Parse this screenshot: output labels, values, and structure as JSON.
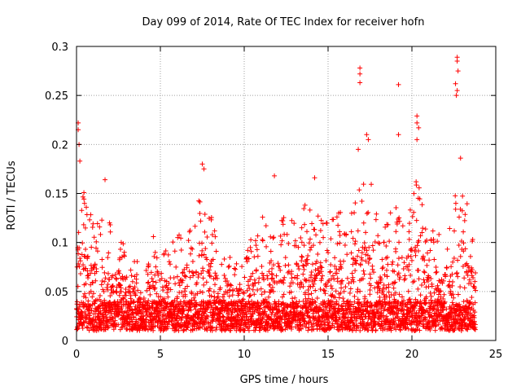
{
  "chart_data": {
    "type": "scatter",
    "title": "Day 099 of 2014, Rate Of TEC Index for receiver hofn",
    "xlabel": "GPS time / hours",
    "ylabel": "ROTI / TECUs",
    "xlim": [
      0,
      25
    ],
    "ylim": [
      0,
      0.3
    ],
    "xticks": [
      0,
      5,
      10,
      15,
      20,
      25
    ],
    "xtick_labels": [
      "0",
      "5",
      "10",
      "15",
      "20",
      "25"
    ],
    "yticks": [
      0,
      0.05,
      0.1,
      0.15,
      0.2,
      0.25,
      0.3
    ],
    "ytick_labels": [
      "0",
      "0.05",
      "0.1",
      "0.15",
      "0.2",
      "0.25",
      "0.3"
    ],
    "grid": true,
    "marker": "+",
    "marker_color": "#ff0000",
    "x_data_range": [
      0,
      23.8
    ],
    "envelope": {
      "x": [
        0,
        0.2,
        0.5,
        1,
        1.5,
        2,
        2.5,
        3,
        3.5,
        4,
        4.5,
        5,
        5.5,
        6,
        6.5,
        7,
        7.5,
        8,
        8.5,
        9,
        9.5,
        10,
        10.5,
        11,
        11.5,
        12,
        12.5,
        13,
        13.5,
        14,
        14.5,
        15,
        15.5,
        16,
        16.5,
        17,
        17.5,
        18,
        18.5,
        19,
        19.5,
        20,
        20.5,
        21,
        21.5,
        22,
        22.5,
        23,
        23.5,
        23.8
      ],
      "y": [
        0.14,
        0.2,
        0.14,
        0.13,
        0.14,
        0.12,
        0.11,
        0.1,
        0.09,
        0.07,
        0.12,
        0.09,
        0.1,
        0.11,
        0.12,
        0.13,
        0.17,
        0.14,
        0.09,
        0.1,
        0.08,
        0.08,
        0.11,
        0.13,
        0.11,
        0.14,
        0.13,
        0.12,
        0.15,
        0.13,
        0.13,
        0.12,
        0.14,
        0.12,
        0.14,
        0.16,
        0.17,
        0.12,
        0.13,
        0.15,
        0.12,
        0.16,
        0.17,
        0.12,
        0.11,
        0.12,
        0.15,
        0.17,
        0.13,
        0.1
      ]
    },
    "baseline": 0.02,
    "highlights": [
      {
        "x": 0.1,
        "y": 0.222
      },
      {
        "x": 0.1,
        "y": 0.215
      },
      {
        "x": 0.15,
        "y": 0.2
      },
      {
        "x": 0.2,
        "y": 0.183
      },
      {
        "x": 1.7,
        "y": 0.164
      },
      {
        "x": 7.5,
        "y": 0.18
      },
      {
        "x": 7.6,
        "y": 0.175
      },
      {
        "x": 11.8,
        "y": 0.168
      },
      {
        "x": 14.2,
        "y": 0.166
      },
      {
        "x": 16.9,
        "y": 0.278
      },
      {
        "x": 16.9,
        "y": 0.272
      },
      {
        "x": 16.9,
        "y": 0.263
      },
      {
        "x": 16.8,
        "y": 0.195
      },
      {
        "x": 17.3,
        "y": 0.21
      },
      {
        "x": 17.4,
        "y": 0.205
      },
      {
        "x": 19.2,
        "y": 0.261
      },
      {
        "x": 19.2,
        "y": 0.21
      },
      {
        "x": 20.3,
        "y": 0.229
      },
      {
        "x": 20.3,
        "y": 0.222
      },
      {
        "x": 20.4,
        "y": 0.217
      },
      {
        "x": 20.3,
        "y": 0.205
      },
      {
        "x": 22.7,
        "y": 0.289
      },
      {
        "x": 22.7,
        "y": 0.285
      },
      {
        "x": 22.75,
        "y": 0.275
      },
      {
        "x": 22.6,
        "y": 0.262
      },
      {
        "x": 22.7,
        "y": 0.255
      },
      {
        "x": 22.65,
        "y": 0.25
      },
      {
        "x": 22.9,
        "y": 0.186
      }
    ]
  }
}
